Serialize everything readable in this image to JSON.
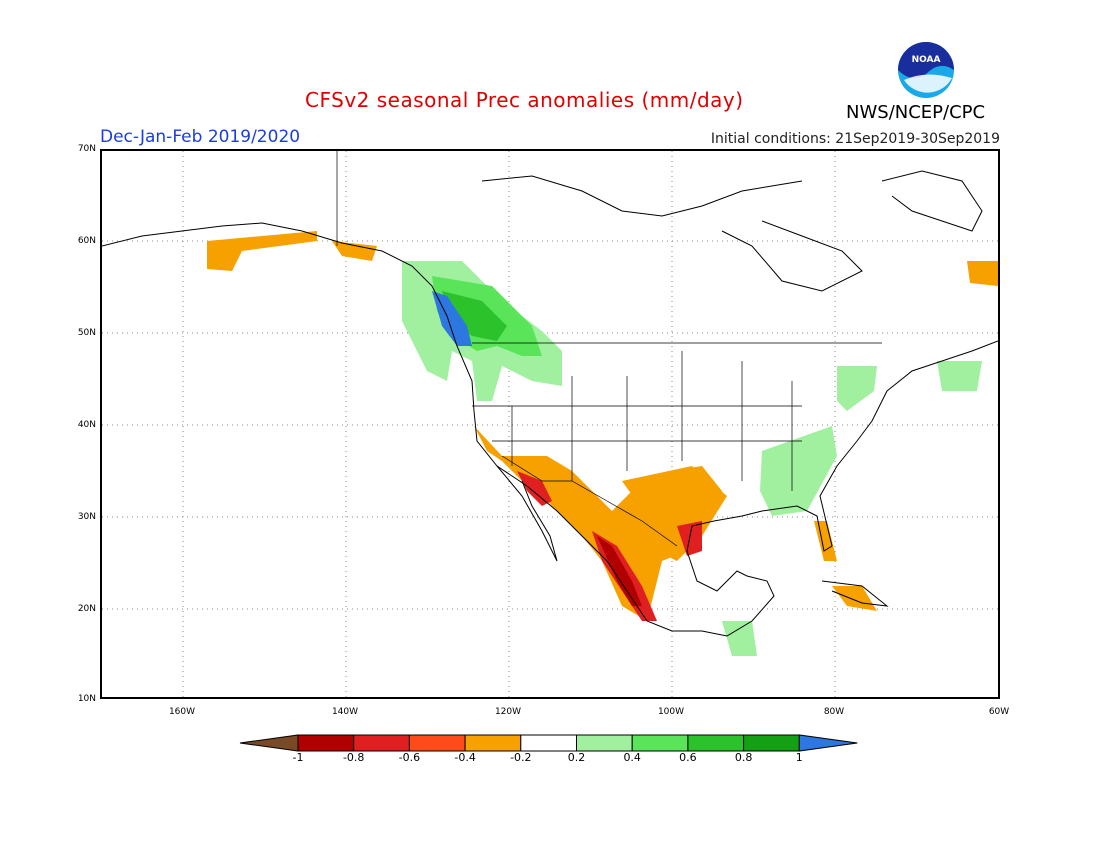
{
  "header": {
    "title": "CFSv2 seasonal Prec anomalies (mm/day)",
    "season": "Dec-Jan-Feb 2019/2020",
    "initial_conditions": "Initial conditions: 21Sep2019-30Sep2019",
    "agency": "NWS/NCEP/CPC",
    "logo_text": "NOAA"
  },
  "map": {
    "lat_labels": [
      "70N",
      "60N",
      "50N",
      "40N",
      "30N",
      "20N",
      "10N"
    ],
    "lon_labels": [
      "160W",
      "140W",
      "120W",
      "100W",
      "80W",
      "60W"
    ],
    "lon_range": [
      -170,
      -60
    ],
    "lat_range": [
      10,
      70
    ]
  },
  "colorbar": {
    "labels": [
      "-1",
      "-0.8",
      "-0.6",
      "-0.4",
      "-0.2",
      "0.2",
      "0.4",
      "0.6",
      "0.8",
      "1"
    ],
    "colors": [
      "#7a4a26",
      "#b00000",
      "#e02020",
      "#ff4a1a",
      "#f7a100",
      "#ffffff",
      "#a0f0a0",
      "#5ae45a",
      "#2cc22c",
      "#14a014",
      "#2c78e0"
    ]
  }
}
